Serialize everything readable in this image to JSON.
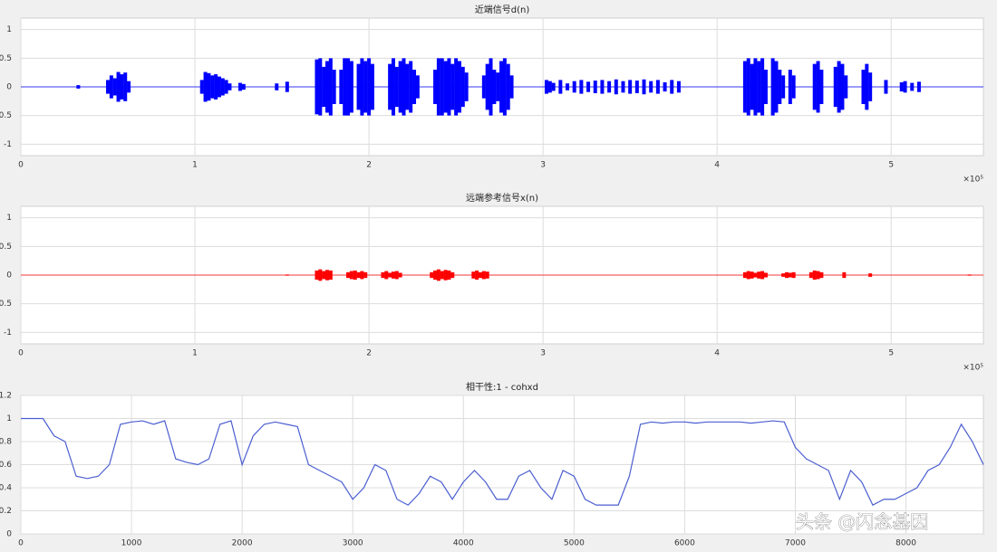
{
  "chart_data": [
    {
      "type": "waveform",
      "title": "近端信号d(n)",
      "x_exponent": "×10⁵",
      "color": "#0000ff",
      "grid": true,
      "xlim": [
        0,
        5.53
      ],
      "xticks": [
        0,
        1,
        2,
        3,
        4,
        5
      ],
      "ylim": [
        -1.2,
        1.2
      ],
      "yticks": [
        -1,
        -0.5,
        0,
        0.5,
        1
      ],
      "x": [
        0.33,
        0.5,
        0.52,
        0.54,
        0.56,
        0.58,
        0.6,
        0.62,
        1.04,
        1.06,
        1.08,
        1.1,
        1.12,
        1.14,
        1.16,
        1.18,
        1.2,
        1.26,
        1.28,
        1.47,
        1.53,
        1.7,
        1.72,
        1.74,
        1.76,
        1.78,
        1.8,
        1.84,
        1.86,
        1.88,
        1.9,
        1.94,
        1.96,
        1.98,
        2.0,
        2.02,
        2.12,
        2.14,
        2.16,
        2.18,
        2.2,
        2.22,
        2.24,
        2.26,
        2.28,
        2.38,
        2.4,
        2.42,
        2.44,
        2.46,
        2.48,
        2.5,
        2.52,
        2.54,
        2.56,
        2.66,
        2.68,
        2.7,
        2.72,
        2.74,
        2.76,
        2.78,
        2.8,
        2.82,
        3.02,
        3.04,
        3.06,
        3.1,
        3.14,
        3.18,
        3.22,
        3.26,
        3.3,
        3.34,
        3.38,
        3.42,
        3.46,
        3.5,
        3.54,
        3.58,
        3.62,
        3.66,
        3.7,
        3.74,
        3.78,
        4.16,
        4.18,
        4.2,
        4.22,
        4.24,
        4.26,
        4.28,
        4.32,
        4.34,
        4.36,
        4.38,
        4.42,
        4.44,
        4.56,
        4.58,
        4.6,
        4.68,
        4.7,
        4.72,
        4.74,
        4.84,
        4.86,
        4.88,
        4.97,
        5.06,
        5.08,
        5.12,
        5.16
      ],
      "values": [
        0.03,
        0.12,
        0.2,
        0.15,
        0.26,
        0.22,
        0.25,
        0.1,
        0.12,
        0.26,
        0.24,
        0.2,
        0.22,
        0.18,
        0.15,
        0.12,
        0.06,
        0.07,
        0.05,
        0.06,
        0.09,
        0.48,
        0.5,
        0.35,
        0.45,
        0.5,
        0.3,
        0.3,
        0.5,
        0.5,
        0.45,
        0.4,
        0.5,
        0.45,
        0.5,
        0.4,
        0.4,
        0.5,
        0.35,
        0.45,
        0.5,
        0.4,
        0.45,
        0.3,
        0.2,
        0.3,
        0.5,
        0.5,
        0.45,
        0.5,
        0.4,
        0.5,
        0.45,
        0.35,
        0.25,
        0.2,
        0.4,
        0.5,
        0.3,
        0.25,
        0.45,
        0.5,
        0.4,
        0.2,
        0.12,
        0.1,
        0.07,
        0.12,
        0.06,
        0.1,
        0.12,
        0.09,
        0.11,
        0.12,
        0.1,
        0.13,
        0.1,
        0.12,
        0.11,
        0.13,
        0.1,
        0.12,
        0.08,
        0.12,
        0.1,
        0.45,
        0.5,
        0.4,
        0.5,
        0.45,
        0.5,
        0.3,
        0.5,
        0.45,
        0.3,
        0.2,
        0.3,
        0.2,
        0.4,
        0.45,
        0.3,
        0.35,
        0.45,
        0.4,
        0.2,
        0.3,
        0.4,
        0.25,
        0.12,
        0.08,
        0.1,
        0.07,
        0.09
      ]
    },
    {
      "type": "waveform",
      "title": "远端参考信号x(n)",
      "x_exponent": "×10⁵",
      "color": "#ff0000",
      "grid": true,
      "xlim": [
        0,
        5.53
      ],
      "xticks": [
        0,
        1,
        2,
        3,
        4,
        5
      ],
      "ylim": [
        -1.2,
        1.2
      ],
      "yticks": [
        -1,
        -0.5,
        0,
        0.5,
        1
      ],
      "x": [
        1.53,
        1.7,
        1.72,
        1.74,
        1.76,
        1.78,
        1.88,
        1.9,
        1.92,
        1.94,
        1.96,
        1.98,
        2.08,
        2.1,
        2.12,
        2.14,
        2.16,
        2.18,
        2.36,
        2.38,
        2.4,
        2.42,
        2.44,
        2.46,
        2.48,
        2.6,
        2.62,
        2.64,
        2.66,
        2.68,
        4.16,
        4.18,
        4.2,
        4.22,
        4.24,
        4.26,
        4.28,
        4.38,
        4.4,
        4.42,
        4.44,
        4.54,
        4.56,
        4.58,
        4.6,
        4.73,
        4.88,
        5.45
      ],
      "values": [
        0.01,
        0.08,
        0.1,
        0.07,
        0.09,
        0.08,
        0.05,
        0.07,
        0.08,
        0.05,
        0.07,
        0.05,
        0.05,
        0.07,
        0.04,
        0.06,
        0.07,
        0.04,
        0.05,
        0.08,
        0.1,
        0.07,
        0.09,
        0.08,
        0.05,
        0.06,
        0.08,
        0.05,
        0.07,
        0.06,
        0.05,
        0.07,
        0.06,
        0.04,
        0.06,
        0.07,
        0.04,
        0.03,
        0.05,
        0.04,
        0.05,
        0.05,
        0.08,
        0.07,
        0.05,
        0.05,
        0.03,
        0.01
      ]
    },
    {
      "type": "line",
      "title": "相干性:1 - cohxd",
      "color": "#4c5fd0",
      "grid": true,
      "xlim": [
        0,
        8700
      ],
      "xticks": [
        0,
        1000,
        2000,
        3000,
        4000,
        5000,
        6000,
        7000,
        8000
      ],
      "ylim": [
        0,
        1.2
      ],
      "yticks": [
        0,
        0.2,
        0.4,
        0.6,
        0.8,
        1,
        1.2
      ],
      "x": [
        0,
        100,
        200,
        300,
        400,
        500,
        600,
        700,
        800,
        900,
        1000,
        1100,
        1200,
        1300,
        1400,
        1500,
        1600,
        1700,
        1800,
        1900,
        2000,
        2100,
        2200,
        2300,
        2400,
        2500,
        2600,
        2700,
        2800,
        2900,
        3000,
        3100,
        3200,
        3300,
        3400,
        3500,
        3600,
        3700,
        3800,
        3900,
        4000,
        4100,
        4200,
        4300,
        4400,
        4500,
        4600,
        4700,
        4800,
        4900,
        5000,
        5100,
        5200,
        5300,
        5400,
        5500,
        5600,
        5700,
        5800,
        5900,
        6000,
        6100,
        6200,
        6300,
        6400,
        6500,
        6600,
        6700,
        6800,
        6900,
        7000,
        7100,
        7200,
        7300,
        7400,
        7500,
        7600,
        7700,
        7800,
        7900,
        8000,
        8100,
        8200,
        8300,
        8400,
        8500,
        8600,
        8700
      ],
      "values": [
        1,
        1,
        1,
        0.85,
        0.8,
        0.5,
        0.48,
        0.5,
        0.6,
        0.95,
        0.97,
        0.98,
        0.95,
        0.98,
        0.65,
        0.62,
        0.6,
        0.65,
        0.95,
        0.98,
        0.6,
        0.85,
        0.95,
        0.97,
        0.95,
        0.93,
        0.6,
        0.55,
        0.5,
        0.45,
        0.3,
        0.4,
        0.6,
        0.55,
        0.3,
        0.25,
        0.35,
        0.5,
        0.45,
        0.3,
        0.45,
        0.55,
        0.45,
        0.3,
        0.3,
        0.5,
        0.55,
        0.4,
        0.3,
        0.55,
        0.5,
        0.3,
        0.25,
        0.25,
        0.25,
        0.5,
        0.95,
        0.97,
        0.96,
        0.97,
        0.97,
        0.96,
        0.97,
        0.97,
        0.97,
        0.97,
        0.96,
        0.97,
        0.98,
        0.97,
        0.75,
        0.65,
        0.6,
        0.55,
        0.3,
        0.55,
        0.45,
        0.25,
        0.3,
        0.3,
        0.35,
        0.4,
        0.55,
        0.6,
        0.75,
        0.95,
        0.8,
        0.6
      ]
    }
  ],
  "watermark": "头条 @闪念基因"
}
